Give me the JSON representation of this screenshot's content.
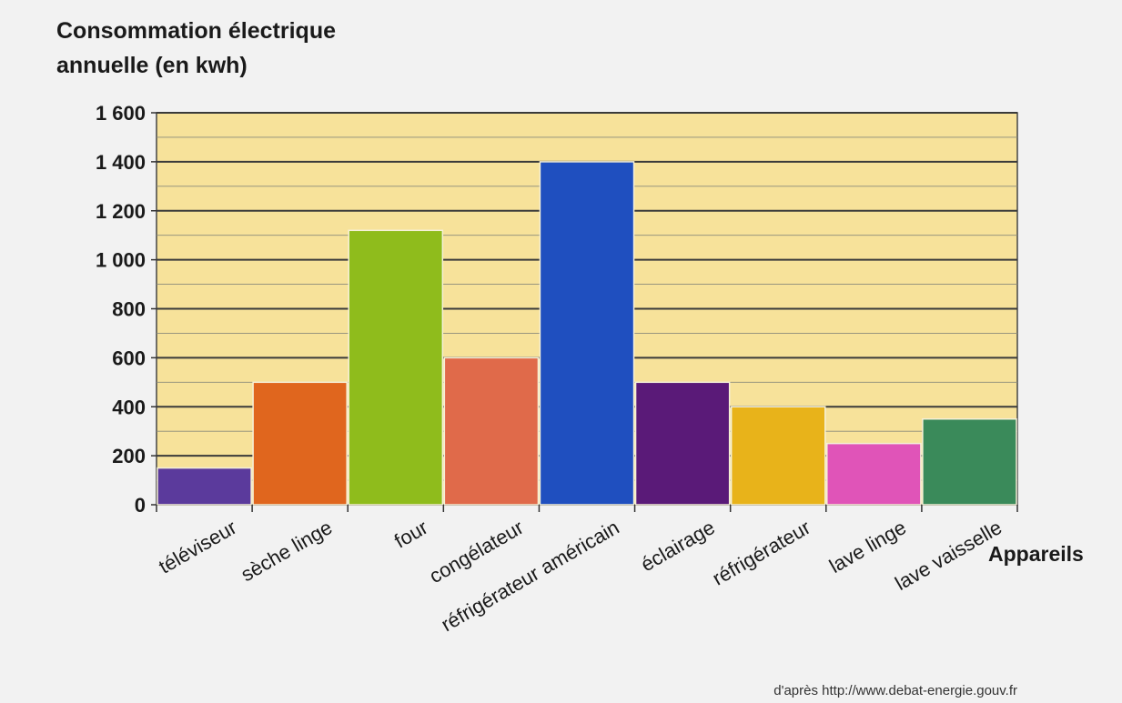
{
  "chart_data": {
    "type": "bar",
    "ylabel_lines": [
      "Consommation électrique",
      "annuelle (en kwh)"
    ],
    "xlabel": "Appareils",
    "ylim": [
      0,
      1600
    ],
    "yticks": [
      0,
      200,
      400,
      600,
      800,
      1000,
      1200,
      1400,
      1600
    ],
    "ytick_labels": [
      "0",
      "200",
      "400",
      "600",
      "800",
      "1 000",
      "1 200",
      "1 400",
      "1 600"
    ],
    "minor_grid_step": 100,
    "grid": true,
    "plot_background": "#f7e29a",
    "categories": [
      "téléviseur",
      "sèche linge",
      "four",
      "congélateur",
      "réfrigérateur américain",
      "éclairage",
      "réfrigérateur",
      "lave linge",
      "lave vaisselle"
    ],
    "values": [
      150,
      500,
      1120,
      600,
      1400,
      500,
      400,
      250,
      350
    ],
    "colors": [
      "#5b3a9c",
      "#e0661e",
      "#8fbc1c",
      "#e06a4a",
      "#1f4fbf",
      "#5a1a78",
      "#e8b31a",
      "#e054b8",
      "#3a8a5a"
    ]
  },
  "source": "d'après http://www.debat-energie.gouv.fr"
}
